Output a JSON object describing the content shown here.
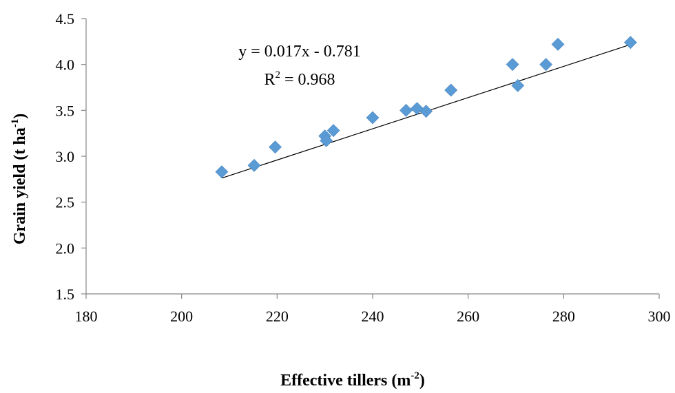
{
  "chart_data": {
    "type": "scatter",
    "xlabel": {
      "text": "Effective tillers (m",
      "sup": "-2",
      "tail": ")"
    },
    "ylabel": {
      "text": "Grain yield  (t ha",
      "sup": "-1",
      "tail": ")"
    },
    "xlim": [
      180,
      300
    ],
    "ylim": [
      1.5,
      4.5
    ],
    "x_ticks": [
      180,
      200,
      220,
      240,
      260,
      280,
      300
    ],
    "y_ticks": [
      "1.5",
      "2.0",
      "2.5",
      "3.0",
      "3.5",
      "4.0",
      "4.5"
    ],
    "grid": false,
    "legend": "none",
    "marker": "diamond",
    "marker_color": "#5B9BD5",
    "trendline_color": "#000000",
    "points": [
      {
        "x": 208.4,
        "y": 2.83
      },
      {
        "x": 215.2,
        "y": 2.9
      },
      {
        "x": 219.6,
        "y": 3.1
      },
      {
        "x": 230.0,
        "y": 3.22
      },
      {
        "x": 230.3,
        "y": 3.17
      },
      {
        "x": 231.8,
        "y": 3.28
      },
      {
        "x": 240.0,
        "y": 3.42
      },
      {
        "x": 247.0,
        "y": 3.5
      },
      {
        "x": 249.3,
        "y": 3.52
      },
      {
        "x": 251.2,
        "y": 3.49
      },
      {
        "x": 256.4,
        "y": 3.72
      },
      {
        "x": 269.3,
        "y": 4.0
      },
      {
        "x": 270.4,
        "y": 3.77
      },
      {
        "x": 276.3,
        "y": 4.0
      },
      {
        "x": 278.8,
        "y": 4.22
      },
      {
        "x": 294.0,
        "y": 4.24
      }
    ],
    "trendline": {
      "x_start": 208.4,
      "x_end": 294.0,
      "slope": 0.017,
      "intercept": -0.781
    },
    "annotations": {
      "equation": "y = 0.017x - 0.781",
      "r2_prefix": "R",
      "r2_sup": "2",
      "r2_suffix": " = 0.968"
    }
  }
}
